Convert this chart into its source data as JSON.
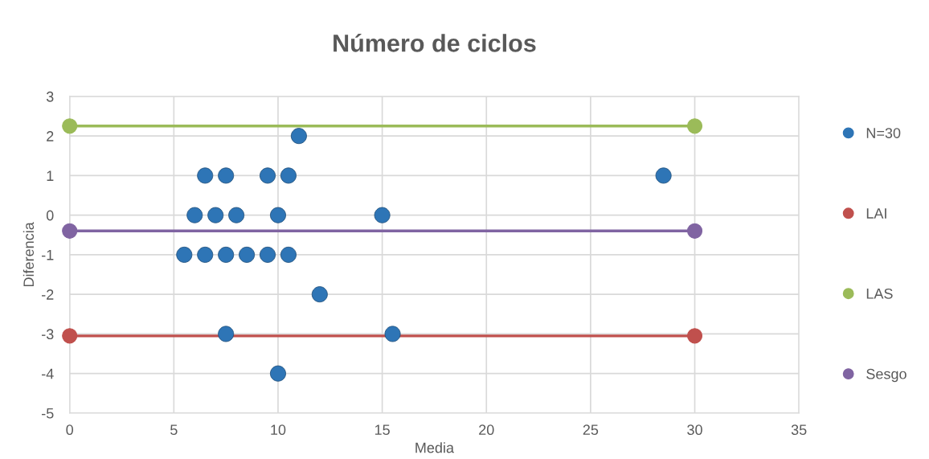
{
  "chart_data": {
    "type": "scatter",
    "title": "Número de ciclos",
    "xlabel": "Media",
    "ylabel": "Diferencia",
    "xlim": [
      0,
      35
    ],
    "xticks": [
      0,
      5,
      10,
      15,
      20,
      25,
      30,
      35
    ],
    "ylim": [
      -5,
      3
    ],
    "yticks": [
      -5,
      -4,
      -3,
      -2,
      -1,
      0,
      1,
      2,
      3
    ],
    "grid": true,
    "legend": "right",
    "marker": "circle",
    "series": [
      {
        "name": "N=30",
        "color": "#2e75b6",
        "x": [
          11,
          6.5,
          7.5,
          9.5,
          10.5,
          6,
          7,
          8,
          10,
          15,
          5.5,
          6.5,
          7.5,
          8.5,
          9.5,
          10.5,
          12,
          7.5,
          15.5,
          10,
          28.5
        ],
        "values": [
          2,
          1,
          1,
          1,
          1,
          0,
          0,
          0,
          0,
          0,
          -1,
          -1,
          -1,
          -1,
          -1,
          -1,
          -2,
          -3,
          -3,
          -4,
          1
        ]
      },
      {
        "name": "LAI",
        "type": "line",
        "color": "#c0504d",
        "x": [
          0,
          30
        ],
        "values": [
          -3.05,
          -3.05
        ]
      },
      {
        "name": "LAS",
        "type": "line",
        "color": "#9bbb59",
        "x": [
          0,
          30
        ],
        "values": [
          2.25,
          2.25
        ]
      },
      {
        "name": "Sesgo",
        "type": "line",
        "color": "#8064a2",
        "x": [
          0,
          30
        ],
        "values": [
          -0.4,
          -0.4
        ]
      }
    ]
  }
}
